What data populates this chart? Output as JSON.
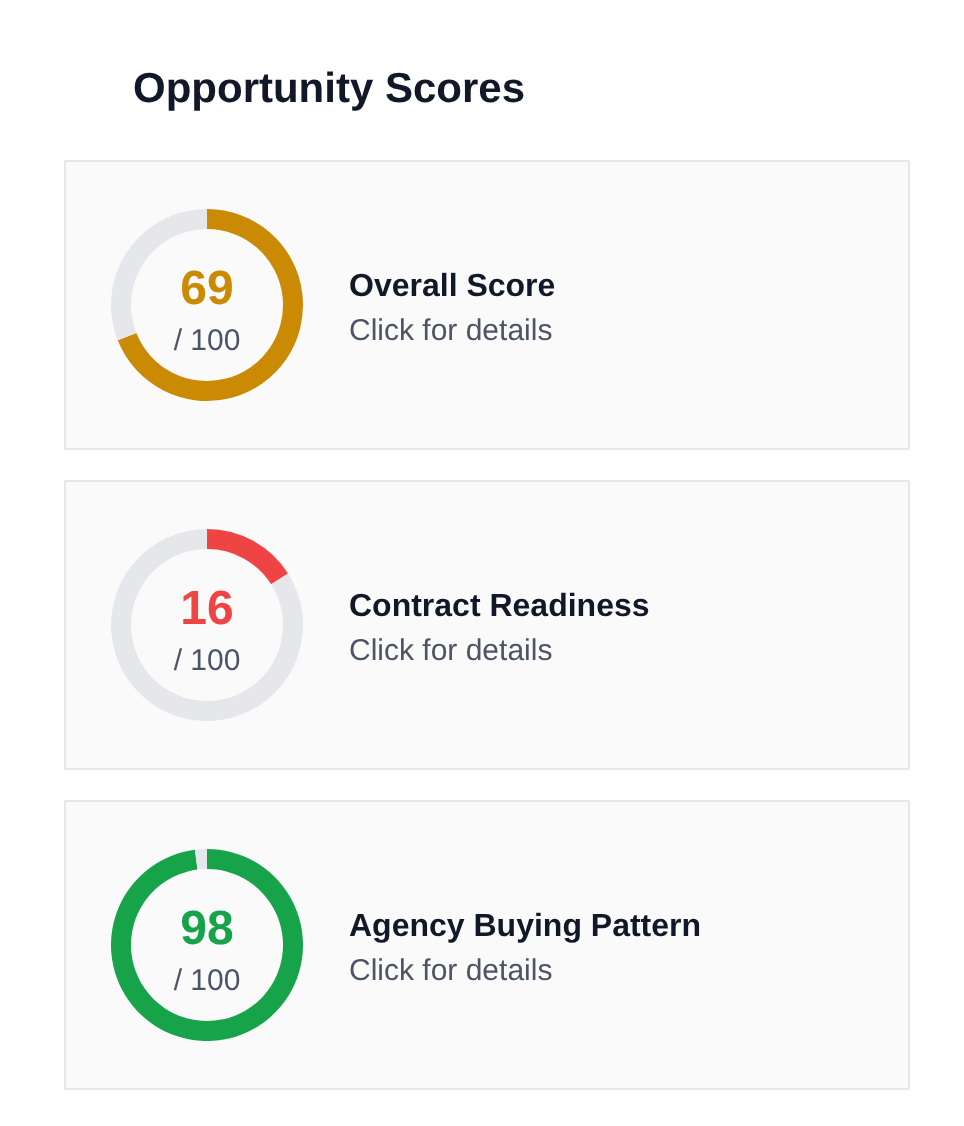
{
  "chart_data": [
    {
      "type": "other",
      "title": "Opportunity Scores"
    },
    {
      "type": "donut",
      "title": "Overall Score",
      "subtitle": "Click for details",
      "categories": [
        null,
        null
      ],
      "values": [
        69,
        31
      ],
      "colors": [
        "#ca8a04",
        "#e5e7eb"
      ],
      "value_labels": [
        "69",
        null
      ],
      "annotations": [
        "/ 100"
      ]
    },
    {
      "type": "donut",
      "title": "Contract Readiness",
      "subtitle": "Click for details",
      "categories": [
        null,
        null
      ],
      "values": [
        16,
        84
      ],
      "colors": [
        "#ef4444",
        "#e5e7eb"
      ],
      "value_labels": [
        "16",
        null
      ],
      "annotations": [
        "/ 100"
      ]
    },
    {
      "type": "donut",
      "title": "Agency Buying Pattern",
      "subtitle": "Click for details",
      "categories": [
        null,
        null
      ],
      "values": [
        98,
        2
      ],
      "colors": [
        "#16a34a",
        "#e5e7eb"
      ],
      "value_labels": [
        "98",
        null
      ],
      "annotations": [
        "/ 100"
      ]
    }
  ]
}
